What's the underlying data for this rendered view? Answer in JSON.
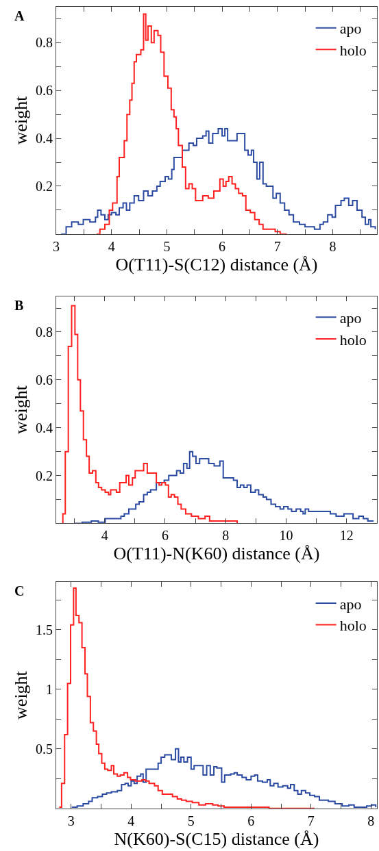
{
  "chart_data": [
    {
      "type": "step",
      "xlabel": "O(T11)-S(C12) distance (Å)",
      "ylabel": "weight",
      "annotations": [
        "A"
      ],
      "legend": "top right",
      "xlim": [
        3,
        8.8
      ],
      "xticks": [
        3,
        {
          "value": 3.5,
          "label": null
        },
        4,
        {
          "value": 4.5,
          "label": null
        },
        5,
        {
          "value": 5.5,
          "label": null
        },
        6,
        {
          "value": 6.5,
          "label": null
        },
        7,
        {
          "value": 7.5,
          "label": null
        },
        8,
        {
          "value": 8.5,
          "label": null
        }
      ],
      "ylim": [
        0,
        0.95
      ],
      "yticks": [
        {
          "value": 0.1,
          "label": null
        },
        0.2,
        {
          "value": 0.3,
          "label": null
        },
        0.4,
        {
          "value": 0.5,
          "label": null
        },
        0.6,
        {
          "value": 0.7,
          "label": null
        },
        0.8,
        {
          "value": 0.9,
          "label": null
        }
      ],
      "series": [
        {
          "name": "apo",
          "color": "#2b4ba3",
          "x": [
            3.09,
            3.18,
            3.28,
            3.4,
            3.49,
            3.61,
            3.71,
            3.75,
            3.81,
            3.88,
            3.94,
            4.0,
            4.08,
            4.14,
            4.21,
            4.27,
            4.33,
            4.41,
            4.49,
            4.58,
            4.66,
            4.74,
            4.82,
            4.88,
            4.97,
            5.03,
            5.09,
            5.13,
            5.19,
            5.28,
            5.4,
            5.48,
            5.54,
            5.65,
            5.71,
            5.76,
            5.83,
            5.93,
            6.0,
            6.05,
            6.1,
            6.2,
            6.27,
            6.35,
            6.41,
            6.47,
            6.53,
            6.57,
            6.63,
            6.68,
            6.74,
            6.8,
            6.86,
            6.92,
            6.98,
            7.05,
            7.13,
            7.21,
            7.29,
            7.4,
            7.5,
            7.67,
            7.77,
            7.83,
            7.91,
            7.99,
            8.05,
            8.15,
            8.21,
            8.29,
            8.36,
            8.44,
            8.53,
            8.59,
            8.65,
            8.69,
            8.77
          ],
          "values": [
            0.0,
            0.03,
            0.05,
            0.04,
            0.06,
            0.05,
            0.07,
            0.1,
            0.08,
            0.06,
            0.08,
            0.09,
            0.08,
            0.11,
            0.13,
            0.1,
            0.13,
            0.16,
            0.14,
            0.18,
            0.16,
            0.18,
            0.2,
            0.22,
            0.24,
            0.23,
            0.27,
            0.32,
            0.32,
            0.35,
            0.38,
            0.37,
            0.4,
            0.41,
            0.43,
            0.38,
            0.42,
            0.44,
            0.41,
            0.44,
            0.39,
            0.39,
            0.42,
            0.42,
            0.35,
            0.33,
            0.35,
            0.3,
            0.23,
            0.3,
            0.21,
            0.2,
            0.2,
            0.15,
            0.17,
            0.13,
            0.1,
            0.08,
            0.05,
            0.04,
            0.03,
            0.02,
            0.04,
            0.05,
            0.08,
            0.07,
            0.12,
            0.14,
            0.15,
            0.12,
            0.14,
            0.1,
            0.07,
            0.04,
            0.06,
            0.03,
            0.02
          ]
        },
        {
          "name": "holo",
          "color": "#ff2020",
          "x": [
            3.73,
            3.79,
            3.88,
            3.96,
            4.02,
            4.1,
            4.14,
            4.23,
            4.28,
            4.33,
            4.37,
            4.41,
            4.45,
            4.53,
            4.58,
            4.62,
            4.66,
            4.72,
            4.77,
            4.84,
            4.89,
            4.95,
            5.02,
            5.08,
            5.13,
            5.17,
            5.21,
            5.28,
            5.34,
            5.4,
            5.46,
            5.52,
            5.65,
            5.75,
            5.85,
            5.96,
            6.02,
            6.07,
            6.12,
            6.18,
            6.24,
            6.3,
            6.37,
            6.43,
            6.51,
            6.59,
            6.67,
            6.74,
            6.84,
            6.96,
            7.05,
            7.17
          ],
          "values": [
            0.0,
            0.02,
            0.04,
            0.1,
            0.13,
            0.24,
            0.32,
            0.39,
            0.5,
            0.56,
            0.63,
            0.72,
            0.75,
            0.77,
            0.92,
            0.81,
            0.87,
            0.8,
            0.85,
            0.83,
            0.76,
            0.66,
            0.61,
            0.52,
            0.49,
            0.44,
            0.37,
            0.28,
            0.19,
            0.21,
            0.19,
            0.14,
            0.16,
            0.15,
            0.18,
            0.23,
            0.2,
            0.22,
            0.24,
            0.21,
            0.19,
            0.17,
            0.16,
            0.1,
            0.09,
            0.06,
            0.04,
            0.02,
            0.02,
            0.01,
            0.0,
            0.0
          ]
        }
      ]
    },
    {
      "type": "step",
      "xlabel": "O(T11)-N(K60) distance (Å)",
      "ylabel": "weight",
      "annotations": [
        "B"
      ],
      "legend": "top right",
      "xlim": [
        2.4,
        13
      ],
      "xticks": [
        {
          "value": 3,
          "label": null
        },
        4,
        {
          "value": 5,
          "label": null
        },
        6,
        {
          "value": 7,
          "label": null
        },
        8,
        {
          "value": 9,
          "label": null
        },
        10,
        {
          "value": 11,
          "label": null
        },
        12
      ],
      "ylim": [
        0,
        0.95
      ],
      "yticks": [
        {
          "value": 0.1,
          "label": null
        },
        0.2,
        {
          "value": 0.3,
          "label": null
        },
        0.4,
        {
          "value": 0.5,
          "label": null
        },
        0.6,
        {
          "value": 0.7,
          "label": null
        },
        0.8,
        {
          "value": 0.9,
          "label": null
        }
      ],
      "series": [
        {
          "name": "apo",
          "color": "#2b4ba3",
          "x": [
            3.0,
            3.26,
            3.56,
            3.79,
            4.02,
            4.17,
            4.39,
            4.54,
            4.65,
            4.8,
            4.92,
            5.03,
            5.14,
            5.29,
            5.41,
            5.52,
            5.63,
            5.71,
            5.82,
            5.97,
            6.12,
            6.27,
            6.38,
            6.5,
            6.61,
            6.72,
            6.81,
            6.91,
            7.02,
            7.14,
            7.29,
            7.44,
            7.62,
            7.81,
            7.92,
            8.08,
            8.26,
            8.38,
            8.49,
            8.6,
            8.71,
            8.83,
            8.98,
            9.09,
            9.24,
            9.35,
            9.5,
            9.65,
            9.8,
            9.92,
            10.06,
            10.18,
            10.33,
            10.48,
            10.56,
            10.63,
            10.74,
            11.01,
            11.23,
            11.46,
            11.65,
            11.91,
            12.09,
            12.21,
            12.4,
            12.55,
            12.7,
            12.89
          ],
          "values": [
            0.0,
            0.005,
            0.01,
            0.005,
            0.02,
            0.02,
            0.02,
            0.03,
            0.04,
            0.06,
            0.06,
            0.08,
            0.09,
            0.12,
            0.13,
            0.14,
            0.14,
            0.17,
            0.17,
            0.18,
            0.2,
            0.2,
            0.22,
            0.21,
            0.25,
            0.23,
            0.3,
            0.28,
            0.25,
            0.27,
            0.27,
            0.25,
            0.24,
            0.26,
            0.19,
            0.19,
            0.18,
            0.15,
            0.16,
            0.15,
            0.16,
            0.13,
            0.14,
            0.12,
            0.11,
            0.1,
            0.08,
            0.07,
            0.06,
            0.07,
            0.06,
            0.05,
            0.06,
            0.05,
            0.04,
            0.06,
            0.05,
            0.05,
            0.05,
            0.04,
            0.03,
            0.04,
            0.04,
            0.02,
            0.03,
            0.02,
            0.01,
            0.01
          ]
        },
        {
          "name": "holo",
          "color": "#ff2020",
          "x": [
            2.59,
            2.62,
            2.7,
            2.8,
            2.91,
            3.02,
            3.11,
            3.2,
            3.3,
            3.4,
            3.49,
            3.6,
            3.71,
            3.8,
            3.9,
            4.02,
            4.13,
            4.2,
            4.39,
            4.5,
            4.62,
            4.71,
            4.8,
            4.92,
            5.01,
            5.18,
            5.29,
            5.41,
            5.52,
            5.71,
            5.8,
            5.89,
            6.01,
            6.11,
            6.2,
            6.31,
            6.42,
            6.53,
            6.68,
            6.87,
            7.1,
            7.32,
            7.47,
            7.7,
            7.92,
            8.15,
            8.38
          ],
          "values": [
            0.0,
            0.04,
            0.3,
            0.74,
            0.91,
            0.79,
            0.6,
            0.47,
            0.35,
            0.28,
            0.21,
            0.22,
            0.17,
            0.15,
            0.14,
            0.13,
            0.12,
            0.14,
            0.13,
            0.17,
            0.17,
            0.2,
            0.16,
            0.19,
            0.22,
            0.22,
            0.25,
            0.21,
            0.21,
            0.17,
            0.16,
            0.17,
            0.16,
            0.11,
            0.12,
            0.11,
            0.08,
            0.06,
            0.04,
            0.03,
            0.02,
            0.03,
            0.01,
            0.01,
            0.01,
            0.01,
            0.0
          ]
        }
      ]
    },
    {
      "type": "step",
      "xlabel": "N(K60)-S(C15) distance (Å)",
      "ylabel": "weight",
      "annotations": [
        "C"
      ],
      "legend": "top right",
      "xlim": [
        2.75,
        8.1
      ],
      "xticks": [
        3,
        {
          "value": 3.5,
          "label": null
        },
        4,
        {
          "value": 4.5,
          "label": null
        },
        5,
        {
          "value": 5.5,
          "label": null
        },
        6,
        {
          "value": 6.5,
          "label": null
        },
        7,
        {
          "value": 7.5,
          "label": null
        },
        8
      ],
      "ylim": [
        0,
        1.9
      ],
      "yticks": [
        {
          "value": 0.25,
          "label": null
        },
        0.5,
        {
          "value": 0.75,
          "label": null
        },
        1,
        {
          "value": 1.25,
          "label": null
        },
        1.5,
        {
          "value": 1.75,
          "label": null
        }
      ],
      "series": [
        {
          "name": "apo",
          "color": "#2b4ba3",
          "x": [
            3.01,
            3.1,
            3.2,
            3.29,
            3.35,
            3.44,
            3.52,
            3.59,
            3.67,
            3.77,
            3.84,
            3.9,
            3.95,
            4.0,
            4.05,
            4.1,
            4.16,
            4.2,
            4.25,
            4.39,
            4.45,
            4.5,
            4.56,
            4.61,
            4.67,
            4.74,
            4.79,
            4.83,
            4.88,
            4.94,
            5.0,
            5.05,
            5.13,
            5.2,
            5.26,
            5.32,
            5.38,
            5.43,
            5.51,
            5.56,
            5.66,
            5.72,
            5.77,
            5.85,
            5.92,
            6.0,
            6.06,
            6.11,
            6.19,
            6.27,
            6.32,
            6.38,
            6.45,
            6.53,
            6.61,
            6.66,
            6.72,
            6.78,
            6.84,
            6.91,
            6.98,
            7.06,
            7.14,
            7.21,
            7.29,
            7.4,
            7.52,
            7.63,
            7.72,
            7.82,
            7.93,
            8.01,
            8.08
          ],
          "values": [
            0.01,
            0.02,
            0.04,
            0.06,
            0.09,
            0.1,
            0.12,
            0.13,
            0.14,
            0.15,
            0.2,
            0.21,
            0.19,
            0.23,
            0.21,
            0.27,
            0.29,
            0.22,
            0.33,
            0.33,
            0.38,
            0.43,
            0.45,
            0.45,
            0.41,
            0.5,
            0.39,
            0.43,
            0.39,
            0.43,
            0.33,
            0.36,
            0.36,
            0.28,
            0.36,
            0.28,
            0.35,
            0.34,
            0.22,
            0.28,
            0.29,
            0.3,
            0.28,
            0.26,
            0.24,
            0.27,
            0.28,
            0.23,
            0.22,
            0.24,
            0.19,
            0.21,
            0.18,
            0.19,
            0.17,
            0.2,
            0.15,
            0.12,
            0.15,
            0.13,
            0.11,
            0.1,
            0.07,
            0.07,
            0.06,
            0.04,
            0.02,
            0.03,
            0.01,
            0.01,
            0.02,
            0.03,
            0.01
          ]
        },
        {
          "name": "holo",
          "color": "#ff2020",
          "x": [
            2.8,
            2.84,
            2.89,
            2.94,
            2.99,
            3.04,
            3.08,
            3.13,
            3.18,
            3.23,
            3.27,
            3.32,
            3.37,
            3.42,
            3.46,
            3.51,
            3.56,
            3.61,
            3.67,
            3.71,
            3.77,
            3.82,
            3.88,
            3.94,
            3.99,
            4.07,
            4.18,
            4.24,
            4.3,
            4.39,
            4.45,
            4.52,
            4.62,
            4.69,
            4.77,
            4.84,
            4.92,
            5.02,
            5.13,
            5.24,
            5.36,
            5.45,
            5.55,
            5.73,
            5.92,
            6.3,
            6.68,
            7.06
          ],
          "values": [
            0.01,
            0.21,
            0.62,
            1.05,
            1.54,
            1.85,
            1.62,
            1.56,
            1.35,
            1.13,
            0.94,
            0.72,
            0.65,
            0.54,
            0.46,
            0.38,
            0.33,
            0.32,
            0.36,
            0.29,
            0.27,
            0.28,
            0.3,
            0.26,
            0.24,
            0.23,
            0.24,
            0.23,
            0.21,
            0.19,
            0.15,
            0.12,
            0.12,
            0.1,
            0.08,
            0.07,
            0.06,
            0.05,
            0.03,
            0.04,
            0.03,
            0.02,
            0.01,
            0.01,
            0.01,
            0.0,
            0.0,
            0.0
          ]
        }
      ]
    }
  ]
}
